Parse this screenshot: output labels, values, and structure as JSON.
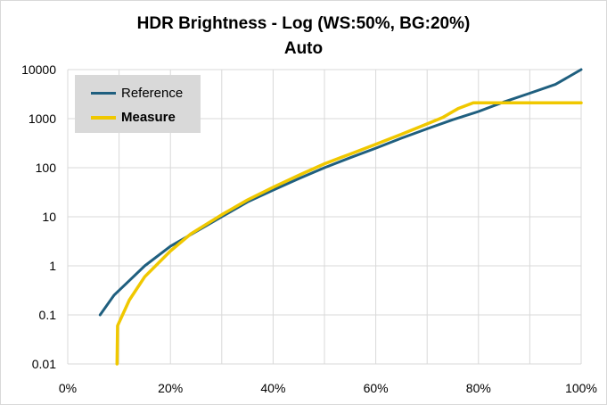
{
  "chart_data": {
    "type": "line",
    "title": "HDR Brightness - Log (WS:50%, BG:20%)",
    "subtitle": "Auto",
    "xlabel": "",
    "ylabel": "",
    "xlim": [
      0,
      100
    ],
    "ylim": [
      0.01,
      10000
    ],
    "yscale": "log",
    "x_ticks": [
      "0%",
      "20%",
      "40%",
      "60%",
      "80%",
      "100%"
    ],
    "y_ticks": [
      "0.01",
      "0.1",
      "1",
      "10",
      "100",
      "1000",
      "10000"
    ],
    "grid": "horizontal and vertical",
    "legend_position": "top-left",
    "series": [
      {
        "name": "Reference",
        "color": "#1f5f7f",
        "points": [
          [
            6.3,
            0.1
          ],
          [
            9,
            0.25
          ],
          [
            12,
            0.5
          ],
          [
            15,
            1
          ],
          [
            20,
            2.5
          ],
          [
            25,
            5
          ],
          [
            30,
            10
          ],
          [
            35,
            20
          ],
          [
            40,
            35
          ],
          [
            45,
            60
          ],
          [
            50,
            100
          ],
          [
            55,
            160
          ],
          [
            60,
            250
          ],
          [
            65,
            400
          ],
          [
            70,
            620
          ],
          [
            75,
            950
          ],
          [
            80,
            1400
          ],
          [
            85,
            2200
          ],
          [
            90,
            3300
          ],
          [
            95,
            5000
          ],
          [
            100,
            10000
          ]
        ]
      },
      {
        "name": "Measure",
        "color": "#f0c800",
        "points": [
          [
            9.6,
            0.01
          ],
          [
            9.7,
            0.06
          ],
          [
            12,
            0.2
          ],
          [
            15,
            0.6
          ],
          [
            20,
            2
          ],
          [
            24,
            4.5
          ],
          [
            30,
            11
          ],
          [
            35,
            22
          ],
          [
            40,
            40
          ],
          [
            45,
            70
          ],
          [
            50,
            120
          ],
          [
            55,
            190
          ],
          [
            60,
            300
          ],
          [
            65,
            480
          ],
          [
            70,
            780
          ],
          [
            73,
            1050
          ],
          [
            76,
            1600
          ],
          [
            79,
            2100
          ],
          [
            85,
            2100
          ],
          [
            90,
            2100
          ],
          [
            95,
            2100
          ],
          [
            100,
            2100
          ]
        ]
      }
    ]
  }
}
